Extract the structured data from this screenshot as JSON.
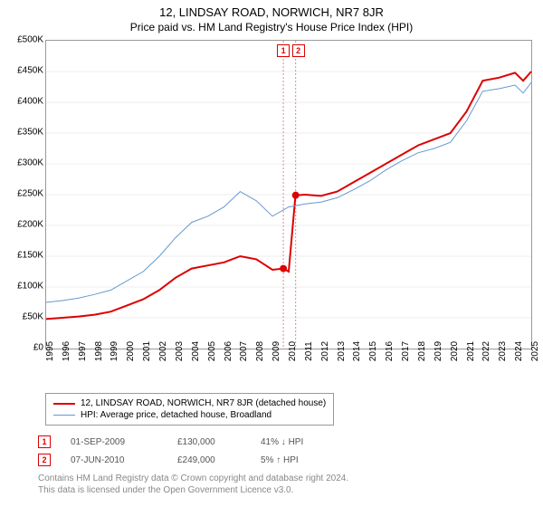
{
  "header": {
    "title": "12, LINDSAY ROAD, NORWICH, NR7 8JR",
    "subtitle": "Price paid vs. HM Land Registry's House Price Index (HPI)"
  },
  "chart": {
    "type": "line",
    "background_color": "#ffffff",
    "grid_color": "#eeeeee",
    "border_color": "#999999",
    "x_years": [
      1995,
      1996,
      1997,
      1998,
      1999,
      2000,
      2001,
      2002,
      2003,
      2004,
      2005,
      2006,
      2007,
      2008,
      2009,
      2010,
      2011,
      2012,
      2013,
      2014,
      2015,
      2016,
      2017,
      2018,
      2019,
      2020,
      2021,
      2022,
      2023,
      2024,
      2025
    ],
    "xlim": [
      1995,
      2025
    ],
    "y_ticks": [
      0,
      50000,
      100000,
      150000,
      200000,
      250000,
      300000,
      350000,
      400000,
      450000,
      500000
    ],
    "y_labels": [
      "£0",
      "£50K",
      "£100K",
      "£150K",
      "£200K",
      "£250K",
      "£300K",
      "£350K",
      "£400K",
      "£450K",
      "£500K"
    ],
    "ylim": [
      0,
      500000
    ],
    "label_fontsize": 10,
    "series": [
      {
        "name": "12, LINDSAY ROAD, NORWICH, NR7 8JR (detached house)",
        "color": "#dd0000",
        "width": 2,
        "data": [
          [
            1995,
            48000
          ],
          [
            1996,
            50000
          ],
          [
            1997,
            52000
          ],
          [
            1998,
            55000
          ],
          [
            1999,
            60000
          ],
          [
            2000,
            70000
          ],
          [
            2001,
            80000
          ],
          [
            2002,
            95000
          ],
          [
            2003,
            115000
          ],
          [
            2004,
            130000
          ],
          [
            2005,
            135000
          ],
          [
            2006,
            140000
          ],
          [
            2007,
            150000
          ],
          [
            2008,
            145000
          ],
          [
            2009,
            128000
          ],
          [
            2009.67,
            130000
          ],
          [
            2009.68,
            130000
          ],
          [
            2010.0,
            125000
          ],
          [
            2010.42,
            249000
          ],
          [
            2010.43,
            249000
          ],
          [
            2011,
            250000
          ],
          [
            2012,
            248000
          ],
          [
            2013,
            255000
          ],
          [
            2014,
            270000
          ],
          [
            2015,
            285000
          ],
          [
            2016,
            300000
          ],
          [
            2017,
            315000
          ],
          [
            2018,
            330000
          ],
          [
            2019,
            340000
          ],
          [
            2020,
            350000
          ],
          [
            2021,
            385000
          ],
          [
            2022,
            435000
          ],
          [
            2023,
            440000
          ],
          [
            2024,
            448000
          ],
          [
            2024.5,
            435000
          ],
          [
            2025,
            450000
          ]
        ]
      },
      {
        "name": "HPI: Average price, detached house, Broadland",
        "color": "#6699cc",
        "width": 1,
        "data": [
          [
            1995,
            75000
          ],
          [
            1996,
            78000
          ],
          [
            1997,
            82000
          ],
          [
            1998,
            88000
          ],
          [
            1999,
            95000
          ],
          [
            2000,
            110000
          ],
          [
            2001,
            125000
          ],
          [
            2002,
            150000
          ],
          [
            2003,
            180000
          ],
          [
            2004,
            205000
          ],
          [
            2005,
            215000
          ],
          [
            2006,
            230000
          ],
          [
            2007,
            255000
          ],
          [
            2008,
            240000
          ],
          [
            2009,
            215000
          ],
          [
            2010,
            230000
          ],
          [
            2011,
            235000
          ],
          [
            2012,
            238000
          ],
          [
            2013,
            245000
          ],
          [
            2014,
            258000
          ],
          [
            2015,
            272000
          ],
          [
            2016,
            290000
          ],
          [
            2017,
            305000
          ],
          [
            2018,
            318000
          ],
          [
            2019,
            325000
          ],
          [
            2020,
            335000
          ],
          [
            2021,
            370000
          ],
          [
            2022,
            418000
          ],
          [
            2023,
            422000
          ],
          [
            2024,
            428000
          ],
          [
            2024.5,
            415000
          ],
          [
            2025,
            432000
          ]
        ]
      }
    ],
    "markers": [
      {
        "n": "1",
        "x": 2009.67,
        "y": 130000
      },
      {
        "n": "2",
        "x": 2010.43,
        "y": 249000
      }
    ],
    "marker_color": "#dd0000",
    "marker_top_y": 30
  },
  "legend": {
    "items": [
      {
        "label": "12, LINDSAY ROAD, NORWICH, NR7 8JR (detached house)",
        "color": "#dd0000",
        "width": 2
      },
      {
        "label": "HPI: Average price, detached house, Broadland",
        "color": "#6699cc",
        "width": 1
      }
    ]
  },
  "transactions": [
    {
      "n": "1",
      "date": "01-SEP-2009",
      "price": "£130,000",
      "pct": "41% ↓ HPI"
    },
    {
      "n": "2",
      "date": "07-JUN-2010",
      "price": "£249,000",
      "pct": "5% ↑ HPI"
    }
  ],
  "footer": {
    "line1": "Contains HM Land Registry data © Crown copyright and database right 2024.",
    "line2": "This data is licensed under the Open Government Licence v3.0."
  }
}
